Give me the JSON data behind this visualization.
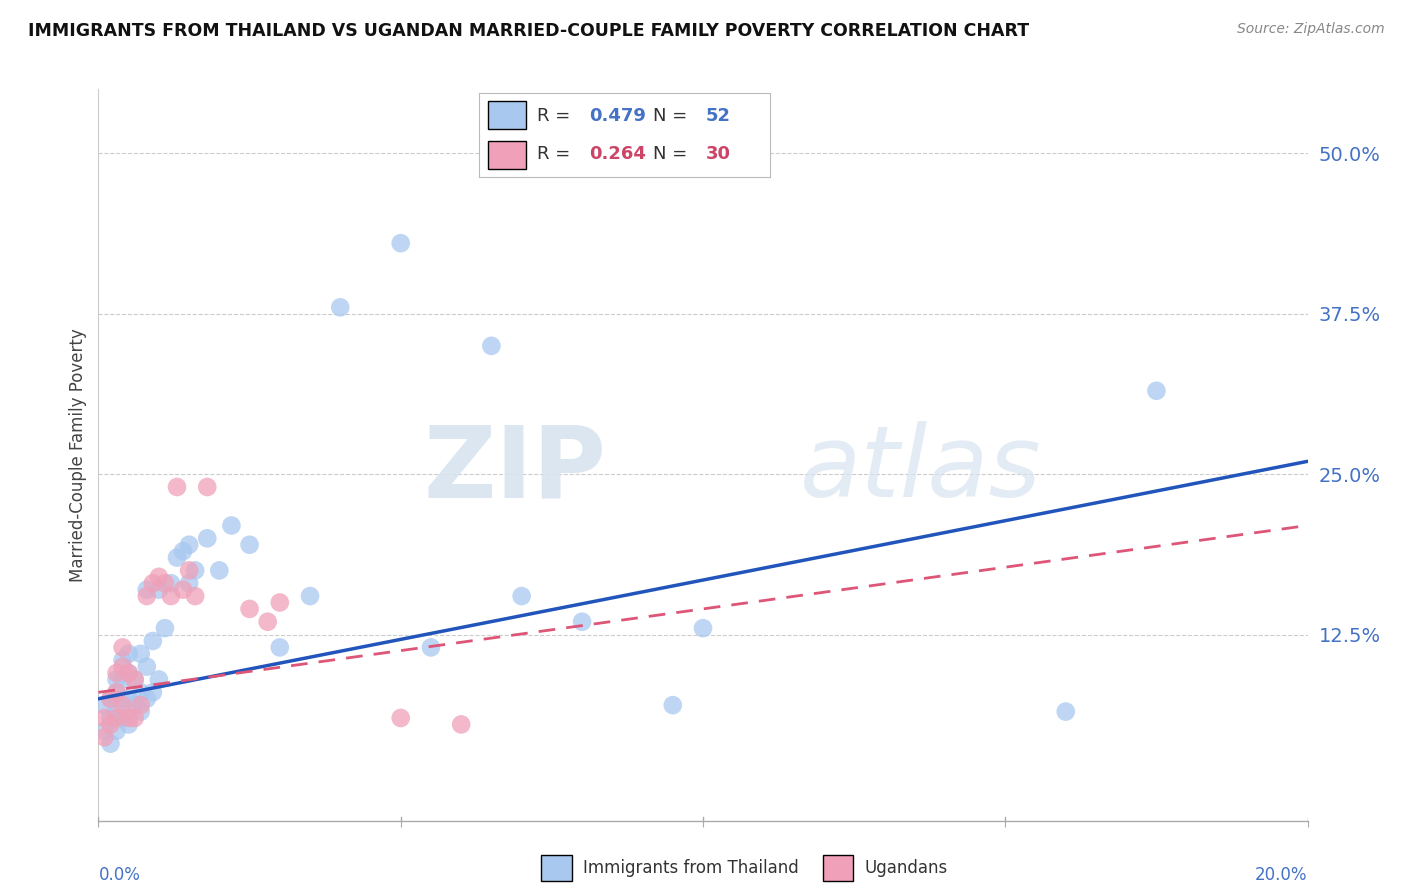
{
  "title": "IMMIGRANTS FROM THAILAND VS UGANDAN MARRIED-COUPLE FAMILY POVERTY CORRELATION CHART",
  "source": "Source: ZipAtlas.com",
  "ylabel": "Married-Couple Family Poverty",
  "xmin": 0.0,
  "xmax": 0.2,
  "ymin": -0.02,
  "ymax": 0.55,
  "yticks": [
    0.0,
    0.125,
    0.25,
    0.375,
    0.5
  ],
  "ytick_labels": [
    "",
    "12.5%",
    "25.0%",
    "37.5%",
    "50.0%"
  ],
  "legend1_R": "0.479",
  "legend1_N": "52",
  "legend2_R": "0.264",
  "legend2_N": "30",
  "blue_color": "#a8c8f0",
  "pink_color": "#f0a0b8",
  "blue_line_color": "#2255bb",
  "pink_line_color": "#dd5577",
  "pink_line_dash": "#dd7799",
  "watermark_zip": "ZIP",
  "watermark_atlas": "atlas",
  "blue_scatter_x": [
    0.001,
    0.001,
    0.002,
    0.002,
    0.002,
    0.003,
    0.003,
    0.003,
    0.003,
    0.004,
    0.004,
    0.004,
    0.004,
    0.005,
    0.005,
    0.005,
    0.005,
    0.006,
    0.006,
    0.007,
    0.007,
    0.007,
    0.008,
    0.008,
    0.008,
    0.009,
    0.009,
    0.01,
    0.01,
    0.011,
    0.012,
    0.013,
    0.014,
    0.015,
    0.015,
    0.016,
    0.018,
    0.02,
    0.022,
    0.025,
    0.03,
    0.035,
    0.04,
    0.05,
    0.055,
    0.065,
    0.07,
    0.08,
    0.095,
    0.1,
    0.16,
    0.175
  ],
  "blue_scatter_y": [
    0.05,
    0.07,
    0.04,
    0.06,
    0.075,
    0.05,
    0.065,
    0.08,
    0.09,
    0.06,
    0.075,
    0.09,
    0.105,
    0.055,
    0.075,
    0.095,
    0.11,
    0.07,
    0.09,
    0.065,
    0.08,
    0.11,
    0.075,
    0.1,
    0.16,
    0.08,
    0.12,
    0.09,
    0.16,
    0.13,
    0.165,
    0.185,
    0.19,
    0.165,
    0.195,
    0.175,
    0.2,
    0.175,
    0.21,
    0.195,
    0.115,
    0.155,
    0.38,
    0.43,
    0.115,
    0.35,
    0.155,
    0.135,
    0.07,
    0.13,
    0.065,
    0.315
  ],
  "pink_scatter_x": [
    0.001,
    0.001,
    0.002,
    0.002,
    0.003,
    0.003,
    0.003,
    0.004,
    0.004,
    0.004,
    0.005,
    0.005,
    0.006,
    0.006,
    0.007,
    0.008,
    0.009,
    0.01,
    0.011,
    0.012,
    0.013,
    0.014,
    0.015,
    0.016,
    0.018,
    0.025,
    0.028,
    0.03,
    0.05,
    0.06
  ],
  "pink_scatter_y": [
    0.045,
    0.06,
    0.055,
    0.075,
    0.06,
    0.08,
    0.095,
    0.07,
    0.1,
    0.115,
    0.06,
    0.095,
    0.06,
    0.09,
    0.07,
    0.155,
    0.165,
    0.17,
    0.165,
    0.155,
    0.24,
    0.16,
    0.175,
    0.155,
    0.24,
    0.145,
    0.135,
    0.15,
    0.06,
    0.055
  ],
  "blue_trendline_x": [
    0.0,
    0.2
  ],
  "blue_trendline_y": [
    0.075,
    0.26
  ],
  "pink_trendline_x": [
    0.0,
    0.2
  ],
  "pink_trendline_y": [
    0.08,
    0.21
  ]
}
